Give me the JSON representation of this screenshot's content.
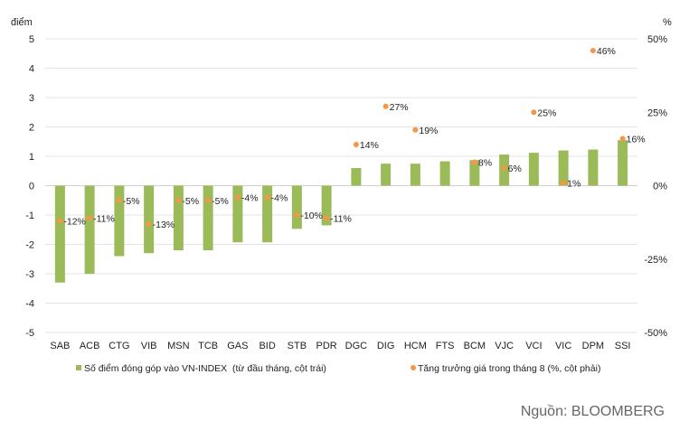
{
  "chart_data": {
    "type": "bar",
    "left_axis_label": "điểm",
    "right_axis_label": "%",
    "categories": [
      "SAB",
      "ACB",
      "CTG",
      "VIB",
      "MSN",
      "TCB",
      "GAS",
      "BID",
      "STB",
      "PDR",
      "DGC",
      "DIG",
      "HCM",
      "FTS",
      "BCM",
      "VJC",
      "VCI",
      "VIC",
      "DPM",
      "SSI"
    ],
    "ylim": [
      -5,
      5
    ],
    "yticks": [
      -5,
      -4,
      -3,
      -2,
      -1,
      0,
      1,
      2,
      3,
      4,
      5
    ],
    "y2lim": [
      -50,
      50
    ],
    "y2ticks": [
      "-50%",
      "-25%",
      "0%",
      "25%",
      "50%"
    ],
    "y2tick_values": [
      -50,
      -25,
      0,
      25,
      50
    ],
    "grid": true,
    "series": [
      {
        "name": "Số điểm đóng góp vào VN-INDEX  (từ đầu tháng, cột trái)",
        "type": "bar",
        "axis": "left",
        "color": "#9bbb59",
        "values": [
          -3.3,
          -3.0,
          -2.4,
          -2.3,
          -2.2,
          -2.2,
          -1.93,
          -1.93,
          -1.47,
          -1.35,
          0.6,
          0.75,
          0.75,
          0.83,
          0.87,
          1.06,
          1.12,
          1.2,
          1.23,
          1.55
        ]
      },
      {
        "name": "Tăng trưởng giá trong tháng 8 (%, cột phải)",
        "type": "scatter",
        "axis": "right",
        "color": "#f79646",
        "values": [
          -12,
          -11,
          -5,
          -13,
          -5,
          -5,
          -4,
          -4,
          -10,
          -11,
          14,
          27,
          19,
          null,
          8,
          6,
          25,
          1,
          46,
          16
        ],
        "labels": [
          "-12%",
          "-11%",
          "-5%",
          "-13%",
          "-5%",
          "-5%",
          "-4%",
          "-4%",
          "-10%",
          "-11%",
          "14%",
          "27%",
          "19%",
          "",
          "8%",
          "6%",
          "25%",
          "1%",
          "46%",
          "16%"
        ]
      }
    ],
    "legend_position": "bottom"
  },
  "source": "Nguồn: BLOOMBERG"
}
